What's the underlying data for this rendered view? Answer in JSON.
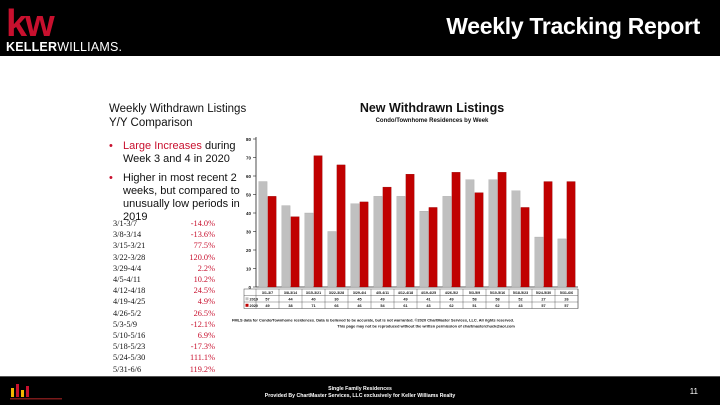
{
  "header": {
    "logo_kw": "kw",
    "logo_keller": "KELLER",
    "logo_williams": "WILLIAMS.",
    "title": "Weekly Tracking Report"
  },
  "left_panel": {
    "title": "Weekly Withdrawn Listings Y/Y Comparison",
    "bullet1_highlight": "Large Increases",
    "bullet1_rest": " during Week 3 and 4 in 2020",
    "bullet2": "Higher in most recent 2 weeks, but compared to unusually low periods in 2019"
  },
  "pct_changes": [
    {
      "period": "3/1-3/7",
      "change": "-14.0%"
    },
    {
      "period": "3/8-3/14",
      "change": "-13.6%"
    },
    {
      "period": "3/15-3/21",
      "change": "77.5%"
    },
    {
      "period": "3/22-3/28",
      "change": "120.0%"
    },
    {
      "period": "3/29-4/4",
      "change": "2.2%"
    },
    {
      "period": "4/5-4/11",
      "change": "10.2%"
    },
    {
      "period": "4/12-4/18",
      "change": "24.5%"
    },
    {
      "period": "4/19-4/25",
      "change": "4.9%"
    },
    {
      "period": "4/26-5/2",
      "change": "26.5%"
    },
    {
      "period": "5/3-5/9",
      "change": "-12.1%"
    },
    {
      "period": "5/10-5/16",
      "change": "6.9%"
    },
    {
      "period": "5/18-5/23",
      "change": "-17.3%"
    },
    {
      "period": "5/24-5/30",
      "change": "111.1%"
    },
    {
      "period": "5/31-6/6",
      "change": "119.2%"
    }
  ],
  "chart_data": {
    "type": "bar",
    "title": "New Withdrawn Listings",
    "subtitle": "Condo/Townhome Residences by Week",
    "categories": [
      "3/1-3/7",
      "3/8-3/14",
      "3/15-3/21",
      "3/22-3/28",
      "3/29-4/4",
      "4/5-4/11",
      "4/12-4/18",
      "4/19-4/25",
      "4/26-5/2",
      "5/3-5/9",
      "5/10-5/16",
      "5/18-5/23",
      "5/24-5/30",
      "5/31-6/6"
    ],
    "series": [
      {
        "name": "2019",
        "values": [
          57,
          44,
          40,
          30,
          45,
          49,
          49,
          41,
          49,
          58,
          58,
          52,
          27,
          26
        ],
        "color": "#c0c0c0"
      },
      {
        "name": "2020",
        "values": [
          49,
          38,
          71,
          66,
          46,
          54,
          61,
          43,
          62,
          51,
          62,
          43,
          57,
          57
        ],
        "color": "#c00000"
      }
    ],
    "ylim": [
      0,
      80
    ],
    "yticks": [
      0,
      10,
      20,
      30,
      40,
      50,
      60,
      70,
      80
    ],
    "grid": false,
    "note": "FMLS data for Condo/Townhome residences. Data is believed to be accurate, but is not warranted. ©2020 ChartMaster Services, LLC. All rights reserved. This page may not be reproduced without the written permission of chartmasterchuck@aol.com"
  },
  "footer": {
    "line1": "Single Family Residences",
    "line2": "Provided By ChartMaster Services, LLC exclusively for Keller Williams Realty",
    "page_number": "11"
  }
}
